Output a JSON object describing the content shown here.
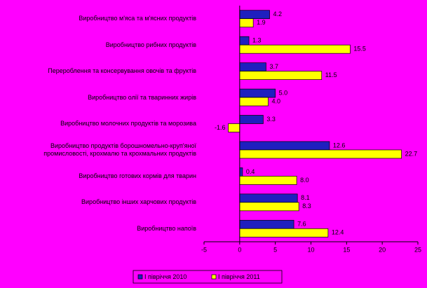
{
  "chart_data": {
    "type": "hbar",
    "categories": [
      "Виробництво м'яса та м'ясних продуктів",
      "Виробництво рибних продуктів",
      "Перероблення та консервування овочів та фруктів",
      "Виробництво олії та тваринних жирів",
      "Виробництво молочних продуктів та морозива",
      "Виробництво продуктів борошномельно-круп'яної промисловості, крохмалю та крохмальних продуктів",
      "Виробництво готових кормів для тварин",
      "Виробництво інших харчових продуктів",
      "Виробництво напоїв"
    ],
    "series": [
      {
        "name": "І півріччя 2010",
        "color": "#1f1fbf",
        "values": [
          4.2,
          1.3,
          3.7,
          5.0,
          3.3,
          12.6,
          0.4,
          8.1,
          7.6
        ],
        "value_labels": [
          "4.2",
          "1.3",
          "3.7",
          "5.0",
          "3.3",
          "12.6",
          "0.4",
          "8.1",
          "7.6"
        ]
      },
      {
        "name": "І півріччя 2011",
        "color": "#ffff00",
        "values": [
          1.9,
          15.5,
          11.5,
          4.0,
          -1.6,
          22.7,
          8.0,
          8.3,
          12.4
        ],
        "value_labels": [
          "1.9",
          "15.5",
          "11.5",
          "4.0",
          "-1.6",
          "22.7",
          "8.0",
          "8.3",
          "12.4"
        ]
      }
    ],
    "xlim": [
      -5,
      25
    ],
    "xticks": [
      -5,
      0,
      5,
      10,
      15,
      20,
      25
    ]
  }
}
